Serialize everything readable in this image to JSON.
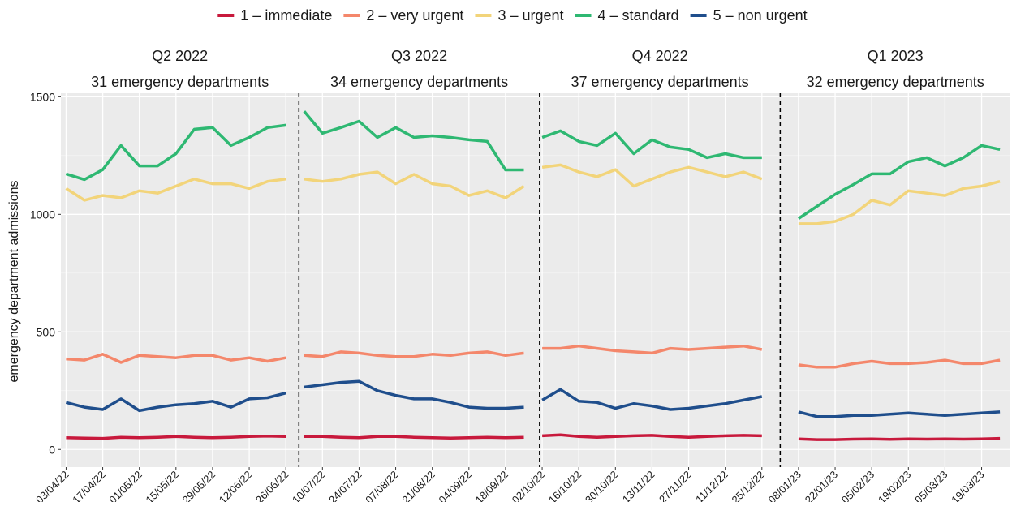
{
  "chart_data": {
    "type": "line",
    "y_label": "emergency department admissions",
    "panels": [
      {
        "title": "Q2 2022",
        "subtitle": "31 emergency departments"
      },
      {
        "title": "Q3 2022",
        "subtitle": "34 emergency departments"
      },
      {
        "title": "Q4 2022",
        "subtitle": "37 emergency departments"
      },
      {
        "title": "Q1 2023",
        "subtitle": "32 emergency departments"
      }
    ],
    "x": [
      "03/04/22",
      "10/04/22",
      "17/04/22",
      "24/04/22",
      "01/05/22",
      "08/05/22",
      "15/05/22",
      "22/05/22",
      "29/05/22",
      "05/06/22",
      "12/06/22",
      "19/06/22",
      "26/06/22",
      "01/07/22",
      "03/07/22",
      "10/07/22",
      "17/07/22",
      "24/07/22",
      "31/07/22",
      "07/08/22",
      "14/08/22",
      "21/08/22",
      "28/08/22",
      "04/09/22",
      "11/09/22",
      "18/09/22",
      "25/09/22",
      "01/10/22",
      "02/10/22",
      "09/10/22",
      "16/10/22",
      "23/10/22",
      "30/10/22",
      "06/11/22",
      "13/11/22",
      "20/11/22",
      "27/11/22",
      "04/12/22",
      "11/12/22",
      "18/12/22",
      "25/12/22",
      "01/01/23",
      "08/01/23",
      "15/01/23",
      "22/01/23",
      "29/01/23",
      "05/02/23",
      "12/02/23",
      "19/02/23",
      "26/02/23",
      "05/03/23",
      "12/03/23",
      "19/03/23",
      "26/03/23"
    ],
    "series": [
      {
        "name": "1 – immediate",
        "color": "#c8193c",
        "values": [
          50,
          48,
          47,
          52,
          50,
          52,
          55,
          52,
          50,
          52,
          55,
          57,
          55,
          null,
          55,
          55,
          52,
          50,
          55,
          55,
          52,
          50,
          48,
          50,
          52,
          50,
          52,
          null,
          58,
          62,
          55,
          52,
          55,
          58,
          60,
          55,
          52,
          55,
          58,
          60,
          58,
          null,
          45,
          42,
          42,
          44,
          45,
          43,
          45,
          44,
          45,
          44,
          45,
          47
        ]
      },
      {
        "name": "2 – very urgent",
        "color": "#f4876b",
        "values": [
          385,
          380,
          405,
          370,
          400,
          395,
          390,
          400,
          400,
          380,
          390,
          375,
          390,
          null,
          400,
          395,
          415,
          410,
          400,
          395,
          395,
          405,
          400,
          410,
          415,
          400,
          410,
          null,
          430,
          430,
          440,
          430,
          420,
          415,
          410,
          430,
          425,
          430,
          435,
          440,
          425,
          null,
          360,
          350,
          350,
          365,
          375,
          365,
          365,
          370,
          380,
          365,
          365,
          380
        ]
      },
      {
        "name": "3 – urgent",
        "color": "#f2d47a",
        "values": [
          1110,
          1060,
          1080,
          1070,
          1100,
          1090,
          1120,
          1150,
          1130,
          1130,
          1110,
          1140,
          1150,
          null,
          1150,
          1140,
          1150,
          1170,
          1180,
          1130,
          1170,
          1130,
          1120,
          1080,
          1100,
          1070,
          1120,
          null,
          1200,
          1210,
          1180,
          1160,
          1190,
          1120,
          1150,
          1180,
          1200,
          1180,
          1160,
          1180,
          1150,
          null,
          960,
          960,
          970,
          1000,
          1060,
          1040,
          1100,
          1090,
          1080,
          1110,
          1120,
          1140
        ]
      },
      {
        "name": "4 – standard",
        "color": "#2eb872",
        "values": [
          1172,
          1148,
          1190,
          1293,
          1206,
          1206,
          1258,
          1362,
          1369,
          1293,
          1327,
          1369,
          1379,
          null,
          1438,
          1345,
          1369,
          1396,
          1327,
          1369,
          1327,
          1334,
          1327,
          1317,
          1310,
          1189,
          1189,
          null,
          1327,
          1355,
          1310,
          1293,
          1345,
          1258,
          1317,
          1286,
          1276,
          1241,
          1258,
          1241,
          1241,
          null,
          982,
          1034,
          1085,
          1127,
          1172,
          1172,
          1224,
          1241,
          1206,
          1241,
          1293,
          1276
        ]
      },
      {
        "name": "5 – non urgent",
        "color": "#1f4e8c",
        "values": [
          200,
          180,
          170,
          215,
          165,
          180,
          190,
          195,
          205,
          180,
          215,
          220,
          240,
          null,
          265,
          275,
          285,
          290,
          250,
          230,
          215,
          215,
          200,
          180,
          175,
          175,
          180,
          null,
          210,
          255,
          205,
          200,
          175,
          195,
          185,
          170,
          175,
          185,
          195,
          210,
          225,
          null,
          160,
          140,
          140,
          145,
          145,
          150,
          155,
          150,
          145,
          150,
          155,
          160
        ]
      }
    ],
    "xlim": [
      "01/04/22",
      "30/03/23"
    ],
    "xticks": [
      "03/04/22",
      "17/04/22",
      "01/05/22",
      "15/05/22",
      "29/05/22",
      "12/06/22",
      "26/06/22",
      "10/07/22",
      "24/07/22",
      "07/08/22",
      "21/08/22",
      "04/09/22",
      "18/09/22",
      "02/10/22",
      "16/10/22",
      "30/10/22",
      "13/11/22",
      "27/11/22",
      "11/12/22",
      "25/12/22",
      "08/01/23",
      "22/01/23",
      "05/02/23",
      "19/02/23",
      "05/03/23",
      "19/03/23"
    ],
    "ylim": [
      -75,
      1515
    ],
    "yticks": [
      0,
      500,
      1000,
      1500
    ],
    "grid": true,
    "legend": "top"
  }
}
